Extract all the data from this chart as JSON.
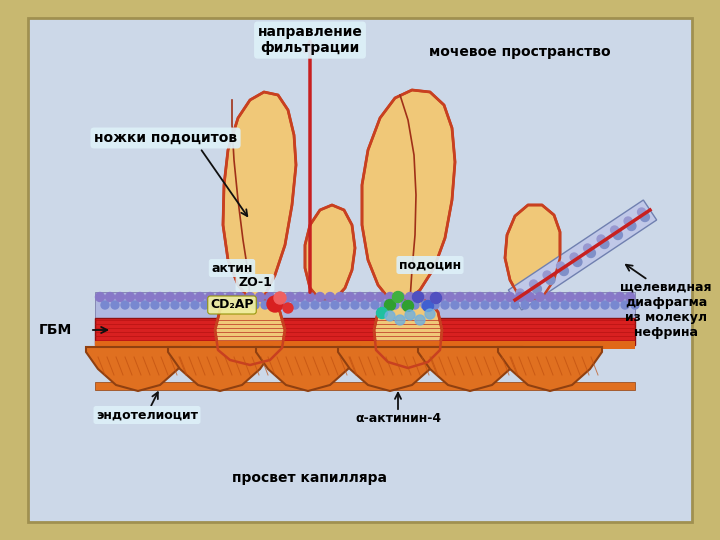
{
  "bg_outer": "#c8b870",
  "bg_inner": "#ccd8e8",
  "podocyte_fill": "#f0c878",
  "podocyte_outline": "#c84020",
  "gbm_color": "#e03030",
  "endothelial_color": "#e07820",
  "arrow_color": "#c82020",
  "text_color": "#000000",
  "membrane_color": "#9898d0",
  "title_filtration": "направление\nфильтрации",
  "label_mocheovoe": "мочевое пространство",
  "label_nozhki": "ножки подоцитов",
  "label_aktin": "актин",
  "label_zo1": "ZO-1",
  "label_cd2ap": "CD₂AP",
  "label_podosin": "подоцин",
  "label_gbm": "ГБМ",
  "label_endotel": "эндотелиоцит",
  "label_alfa_aktin": "α-актинин-4",
  "label_prosvet": "просвет капилляра",
  "label_schelevid": "щелевидная\nдиафрагма\nиз молекул\nнефрина"
}
